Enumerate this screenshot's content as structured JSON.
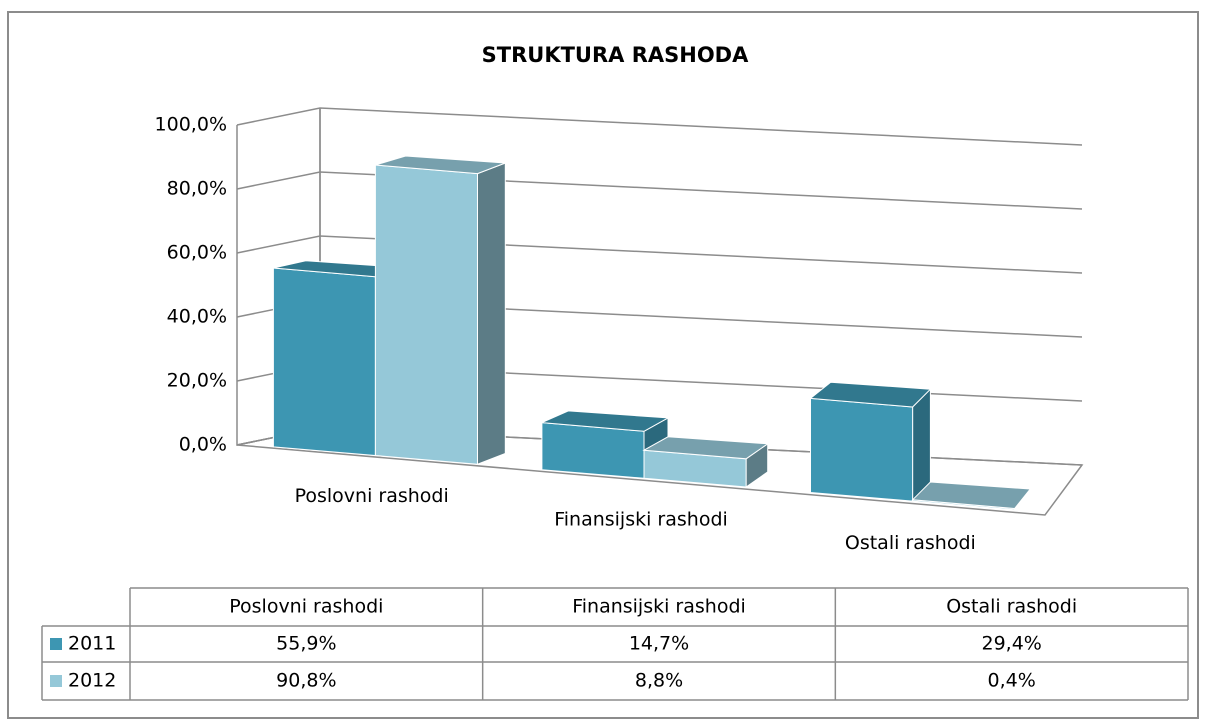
{
  "chart_data": {
    "type": "bar3d",
    "title": "STRUKTURA RASHODA",
    "categories": [
      "Poslovni rashodi",
      "Finansijski rashodi",
      "Ostali rashodi"
    ],
    "series": [
      {
        "name": "2011",
        "color": "#3d96b2",
        "values": [
          55.9,
          14.7,
          29.4
        ],
        "value_labels": [
          "55,9%",
          "14,7%",
          "29,4%"
        ]
      },
      {
        "name": "2012",
        "color": "#95c8d8",
        "values": [
          90.8,
          8.8,
          0.4
        ],
        "value_labels": [
          "90,8%",
          "8,8%",
          "0,4%"
        ]
      }
    ],
    "ylim": [
      0,
      100
    ],
    "yticks": [
      {
        "value": 0,
        "label": "0,0%"
      },
      {
        "value": 20,
        "label": "20,0%"
      },
      {
        "value": 40,
        "label": "40,0%"
      },
      {
        "value": 60,
        "label": "60,0%"
      },
      {
        "value": 80,
        "label": "80,0%"
      },
      {
        "value": 100,
        "label": "100,0%"
      }
    ],
    "grid": true
  }
}
